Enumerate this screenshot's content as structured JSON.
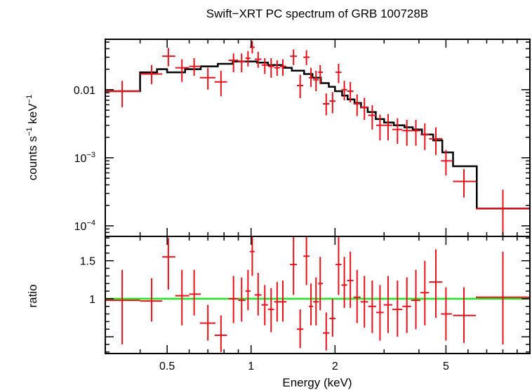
{
  "chart_data": [
    {
      "type": "scatter",
      "title": "Swift−XRT PC spectrum of GRB 100728B",
      "ylabel_main": "counts s",
      "ylabel_exp1": "−1",
      "ylabel_unit": " keV",
      "ylabel_exp2": "−1",
      "xscale": "log",
      "yscale": "log",
      "xlim": [
        0.3,
        10
      ],
      "ylim": [
        7e-05,
        0.055
      ],
      "yticks": [
        {
          "mant": "0.01",
          "exp": ""
        },
        {
          "mant": "10",
          "exp": "−3"
        },
        {
          "mant": "10",
          "exp": "−4"
        }
      ],
      "ytick_values": [
        0.01,
        0.001,
        0.0001
      ],
      "series": [
        {
          "kind": "data",
          "color": "#e8111a",
          "points": [
            {
              "x": 0.345,
              "xlo": 0.3,
              "xhi": 0.4,
              "y": 0.0095,
              "ylo": 0.0055,
              "yhi": 0.0135
            },
            {
              "x": 0.44,
              "xlo": 0.4,
              "xhi": 0.48,
              "y": 0.017,
              "ylo": 0.012,
              "yhi": 0.023
            },
            {
              "x": 0.505,
              "xlo": 0.48,
              "xhi": 0.535,
              "y": 0.031,
              "ylo": 0.022,
              "yhi": 0.041
            },
            {
              "x": 0.565,
              "xlo": 0.535,
              "xhi": 0.6,
              "y": 0.021,
              "ylo": 0.013,
              "yhi": 0.028
            },
            {
              "x": 0.625,
              "xlo": 0.6,
              "xhi": 0.66,
              "y": 0.022,
              "ylo": 0.016,
              "yhi": 0.029
            },
            {
              "x": 0.7,
              "xlo": 0.655,
              "xhi": 0.745,
              "y": 0.015,
              "ylo": 0.01,
              "yhi": 0.021
            },
            {
              "x": 0.78,
              "xlo": 0.74,
              "xhi": 0.82,
              "y": 0.013,
              "ylo": 0.008,
              "yhi": 0.019
            },
            {
              "x": 0.865,
              "xlo": 0.83,
              "xhi": 0.9,
              "y": 0.027,
              "ylo": 0.018,
              "yhi": 0.034
            },
            {
              "x": 0.925,
              "xlo": 0.9,
              "xhi": 0.955,
              "y": 0.026,
              "ylo": 0.018,
              "yhi": 0.034
            },
            {
              "x": 0.975,
              "xlo": 0.955,
              "xhi": 0.995,
              "y": 0.029,
              "ylo": 0.022,
              "yhi": 0.037
            },
            {
              "x": 1.01,
              "xlo": 0.99,
              "xhi": 1.03,
              "y": 0.042,
              "ylo": 0.034,
              "yhi": 0.052
            },
            {
              "x": 1.06,
              "xlo": 1.03,
              "xhi": 1.09,
              "y": 0.028,
              "ylo": 0.021,
              "yhi": 0.036
            },
            {
              "x": 1.12,
              "xlo": 1.09,
              "xhi": 1.15,
              "y": 0.023,
              "ylo": 0.017,
              "yhi": 0.029
            },
            {
              "x": 1.18,
              "xlo": 1.15,
              "xhi": 1.21,
              "y": 0.022,
              "ylo": 0.015,
              "yhi": 0.029
            },
            {
              "x": 1.24,
              "xlo": 1.21,
              "xhi": 1.27,
              "y": 0.021,
              "ylo": 0.016,
              "yhi": 0.027
            },
            {
              "x": 1.3,
              "xlo": 1.27,
              "xhi": 1.34,
              "y": 0.022,
              "ylo": 0.016,
              "yhi": 0.028
            },
            {
              "x": 1.42,
              "xlo": 1.38,
              "xhi": 1.46,
              "y": 0.031,
              "ylo": 0.023,
              "yhi": 0.039
            },
            {
              "x": 1.5,
              "xlo": 1.46,
              "xhi": 1.54,
              "y": 0.0115,
              "ylo": 0.0075,
              "yhi": 0.0165
            },
            {
              "x": 1.58,
              "xlo": 1.54,
              "xhi": 1.62,
              "y": 0.03,
              "ylo": 0.023,
              "yhi": 0.038
            },
            {
              "x": 1.64,
              "xlo": 1.61,
              "xhi": 1.67,
              "y": 0.015,
              "ylo": 0.011,
              "yhi": 0.021
            },
            {
              "x": 1.71,
              "xlo": 1.67,
              "xhi": 1.75,
              "y": 0.014,
              "ylo": 0.0095,
              "yhi": 0.019
            },
            {
              "x": 1.77,
              "xlo": 1.74,
              "xhi": 1.81,
              "y": 0.018,
              "ylo": 0.012,
              "yhi": 0.023
            },
            {
              "x": 1.86,
              "xlo": 1.81,
              "xhi": 1.91,
              "y": 0.0062,
              "ylo": 0.0042,
              "yhi": 0.0088
            },
            {
              "x": 1.96,
              "xlo": 1.91,
              "xhi": 2.01,
              "y": 0.0068,
              "ylo": 0.0045,
              "yhi": 0.0092
            },
            {
              "x": 2.06,
              "xlo": 2.01,
              "xhi": 2.11,
              "y": 0.018,
              "ylo": 0.0125,
              "yhi": 0.024
            },
            {
              "x": 2.16,
              "xlo": 2.11,
              "xhi": 2.21,
              "y": 0.01,
              "ylo": 0.007,
              "yhi": 0.0135
            },
            {
              "x": 2.27,
              "xlo": 2.21,
              "xhi": 2.33,
              "y": 0.0095,
              "ylo": 0.0065,
              "yhi": 0.013
            },
            {
              "x": 2.4,
              "xlo": 2.33,
              "xhi": 2.47,
              "y": 0.0062,
              "ylo": 0.0041,
              "yhi": 0.0085
            },
            {
              "x": 2.55,
              "xlo": 2.47,
              "xhi": 2.63,
              "y": 0.0055,
              "ylo": 0.0036,
              "yhi": 0.0076
            },
            {
              "x": 2.72,
              "xlo": 2.63,
              "xhi": 2.81,
              "y": 0.0042,
              "ylo": 0.0026,
              "yhi": 0.0059
            },
            {
              "x": 2.9,
              "xlo": 2.81,
              "xhi": 2.99,
              "y": 0.003,
              "ylo": 0.0018,
              "yhi": 0.0043
            },
            {
              "x": 3.1,
              "xlo": 2.99,
              "xhi": 3.21,
              "y": 0.003,
              "ylo": 0.0018,
              "yhi": 0.0044
            },
            {
              "x": 3.35,
              "xlo": 3.21,
              "xhi": 3.49,
              "y": 0.0026,
              "ylo": 0.0016,
              "yhi": 0.0038
            },
            {
              "x": 3.62,
              "xlo": 3.49,
              "xhi": 3.75,
              "y": 0.0025,
              "ylo": 0.0015,
              "yhi": 0.0036
            },
            {
              "x": 3.9,
              "xlo": 3.75,
              "xhi": 4.05,
              "y": 0.0025,
              "ylo": 0.0015,
              "yhi": 0.0036
            },
            {
              "x": 4.2,
              "xlo": 4.05,
              "xhi": 4.35,
              "y": 0.0022,
              "ylo": 0.0013,
              "yhi": 0.0032
            },
            {
              "x": 4.6,
              "xlo": 4.35,
              "xhi": 4.85,
              "y": 0.0019,
              "ylo": 0.0011,
              "yhi": 0.0028
            },
            {
              "x": 5.0,
              "xlo": 4.8,
              "xhi": 5.25,
              "y": 0.0009,
              "ylo": 0.00055,
              "yhi": 0.0013
            },
            {
              "x": 5.8,
              "xlo": 5.3,
              "xhi": 6.4,
              "y": 0.00045,
              "ylo": 0.00026,
              "yhi": 0.00068
            },
            {
              "x": 8.0,
              "xlo": 6.4,
              "xhi": 10.0,
              "y": 0.00018,
              "ylo": 7e-05,
              "yhi": 0.00034
            }
          ]
        },
        {
          "kind": "model-step",
          "color": "#000000",
          "steps": [
            [
              0.3,
              0.4,
              0.0095
            ],
            [
              0.4,
              0.46,
              0.018
            ],
            [
              0.46,
              0.5,
              0.02
            ],
            [
              0.5,
              0.58,
              0.018
            ],
            [
              0.58,
              0.66,
              0.02
            ],
            [
              0.66,
              0.76,
              0.022
            ],
            [
              0.76,
              0.86,
              0.024
            ],
            [
              0.86,
              1.05,
              0.026
            ],
            [
              1.05,
              1.15,
              0.025
            ],
            [
              1.15,
              1.3,
              0.023
            ],
            [
              1.3,
              1.4,
              0.021
            ],
            [
              1.4,
              1.55,
              0.019
            ],
            [
              1.55,
              1.66,
              0.017
            ],
            [
              1.66,
              1.78,
              0.015
            ],
            [
              1.78,
              1.9,
              0.0125
            ],
            [
              1.9,
              2.0,
              0.011
            ],
            [
              2.0,
              2.12,
              0.0095
            ],
            [
              2.12,
              2.22,
              0.0082
            ],
            [
              2.22,
              2.35,
              0.0072
            ],
            [
              2.35,
              2.48,
              0.0064
            ],
            [
              2.48,
              2.62,
              0.0055
            ],
            [
              2.62,
              2.8,
              0.0047
            ],
            [
              2.8,
              3.0,
              0.0037
            ],
            [
              3.0,
              3.25,
              0.0033
            ],
            [
              3.25,
              3.55,
              0.003
            ],
            [
              3.55,
              3.8,
              0.0028
            ],
            [
              3.8,
              4.1,
              0.0026
            ],
            [
              4.1,
              4.5,
              0.0022
            ],
            [
              4.5,
              4.85,
              0.0018
            ],
            [
              4.85,
              5.3,
              0.0012
            ],
            [
              5.3,
              6.45,
              0.00075
            ],
            [
              6.45,
              10.0,
              0.00018
            ]
          ]
        }
      ]
    },
    {
      "type": "scatter",
      "ylabel": "ratio",
      "xlabel": "Energy (keV)",
      "xscale": "log",
      "xlim": [
        0.3,
        10
      ],
      "ylim": [
        0.28,
        1.82
      ],
      "yticks": [
        "1.5",
        "1"
      ],
      "ytick_values": [
        1.5,
        1.0
      ],
      "xticks": [
        "0.5",
        "1",
        "2",
        "5"
      ],
      "xtick_values": [
        0.5,
        1,
        2,
        5
      ],
      "reference_line": {
        "y": 1.0,
        "color": "#1ee61e"
      },
      "series": [
        {
          "kind": "data",
          "color": "#e8111a",
          "points": [
            {
              "x": 0.345,
              "xlo": 0.3,
              "xhi": 0.4,
              "y": 0.98,
              "ylo": 0.4,
              "yhi": 1.38
            },
            {
              "x": 0.44,
              "xlo": 0.4,
              "xhi": 0.48,
              "y": 0.97,
              "ylo": 0.7,
              "yhi": 1.27
            },
            {
              "x": 0.505,
              "xlo": 0.48,
              "xhi": 0.535,
              "y": 1.55,
              "ylo": 1.12,
              "yhi": 1.8
            },
            {
              "x": 0.565,
              "xlo": 0.535,
              "xhi": 0.6,
              "y": 1.04,
              "ylo": 0.65,
              "yhi": 1.38
            },
            {
              "x": 0.625,
              "xlo": 0.6,
              "xhi": 0.66,
              "y": 1.06,
              "ylo": 0.78,
              "yhi": 1.38
            },
            {
              "x": 0.7,
              "xlo": 0.655,
              "xhi": 0.745,
              "y": 0.68,
              "ylo": 0.45,
              "yhi": 0.92
            },
            {
              "x": 0.78,
              "xlo": 0.74,
              "xhi": 0.82,
              "y": 0.52,
              "ylo": 0.3,
              "yhi": 0.78
            },
            {
              "x": 0.865,
              "xlo": 0.83,
              "xhi": 0.9,
              "y": 1.0,
              "ylo": 0.68,
              "yhi": 1.3
            },
            {
              "x": 0.925,
              "xlo": 0.9,
              "xhi": 0.955,
              "y": 0.98,
              "ylo": 0.7,
              "yhi": 1.28
            },
            {
              "x": 0.975,
              "xlo": 0.955,
              "xhi": 0.995,
              "y": 1.1,
              "ylo": 0.85,
              "yhi": 1.38
            },
            {
              "x": 1.01,
              "xlo": 0.99,
              "xhi": 1.03,
              "y": 1.62,
              "ylo": 1.3,
              "yhi": 1.98
            },
            {
              "x": 1.06,
              "xlo": 1.03,
              "xhi": 1.09,
              "y": 1.05,
              "ylo": 0.78,
              "yhi": 1.34
            },
            {
              "x": 1.12,
              "xlo": 1.09,
              "xhi": 1.15,
              "y": 0.92,
              "ylo": 0.65,
              "yhi": 1.18
            },
            {
              "x": 1.18,
              "xlo": 1.15,
              "xhi": 1.21,
              "y": 0.86,
              "ylo": 0.56,
              "yhi": 1.14
            },
            {
              "x": 1.24,
              "xlo": 1.21,
              "xhi": 1.27,
              "y": 0.96,
              "ylo": 0.7,
              "yhi": 1.22
            },
            {
              "x": 1.3,
              "xlo": 1.27,
              "xhi": 1.34,
              "y": 0.96,
              "ylo": 0.7,
              "yhi": 1.24
            },
            {
              "x": 1.42,
              "xlo": 1.38,
              "xhi": 1.46,
              "y": 1.45,
              "ylo": 1.05,
              "yhi": 1.82
            },
            {
              "x": 1.5,
              "xlo": 1.46,
              "xhi": 1.54,
              "y": 0.6,
              "ylo": 0.35,
              "yhi": 0.86
            },
            {
              "x": 1.58,
              "xlo": 1.54,
              "xhi": 1.62,
              "y": 1.56,
              "ylo": 1.18,
              "yhi": 1.92
            },
            {
              "x": 1.64,
              "xlo": 1.61,
              "xhi": 1.67,
              "y": 0.9,
              "ylo": 0.65,
              "yhi": 1.2
            },
            {
              "x": 1.71,
              "xlo": 1.67,
              "xhi": 1.75,
              "y": 0.96,
              "ylo": 0.65,
              "yhi": 1.28
            },
            {
              "x": 1.77,
              "xlo": 1.74,
              "xhi": 1.81,
              "y": 1.2,
              "ylo": 0.85,
              "yhi": 1.55
            },
            {
              "x": 1.86,
              "xlo": 1.81,
              "xhi": 1.91,
              "y": 0.55,
              "ylo": 0.32,
              "yhi": 0.82
            },
            {
              "x": 1.96,
              "xlo": 1.91,
              "xhi": 2.01,
              "y": 0.74,
              "ylo": 0.5,
              "yhi": 1.0
            },
            {
              "x": 2.06,
              "xlo": 2.01,
              "xhi": 2.11,
              "y": 1.45,
              "ylo": 1.05,
              "yhi": 1.84
            },
            {
              "x": 2.16,
              "xlo": 2.11,
              "xhi": 2.21,
              "y": 1.18,
              "ylo": 0.88,
              "yhi": 1.55
            },
            {
              "x": 2.27,
              "xlo": 2.21,
              "xhi": 2.33,
              "y": 1.24,
              "ylo": 0.88,
              "yhi": 1.62
            },
            {
              "x": 2.4,
              "xlo": 2.33,
              "xhi": 2.47,
              "y": 1.02,
              "ylo": 0.68,
              "yhi": 1.38
            },
            {
              "x": 2.55,
              "xlo": 2.47,
              "xhi": 2.63,
              "y": 0.96,
              "ylo": 0.62,
              "yhi": 1.3
            },
            {
              "x": 2.72,
              "xlo": 2.63,
              "xhi": 2.81,
              "y": 0.9,
              "ylo": 0.55,
              "yhi": 1.24
            },
            {
              "x": 2.9,
              "xlo": 2.81,
              "xhi": 2.99,
              "y": 0.82,
              "ylo": 0.45,
              "yhi": 1.18
            },
            {
              "x": 3.1,
              "xlo": 2.99,
              "xhi": 3.21,
              "y": 0.92,
              "ylo": 0.55,
              "yhi": 1.3
            },
            {
              "x": 3.35,
              "xlo": 3.21,
              "xhi": 3.49,
              "y": 0.86,
              "ylo": 0.5,
              "yhi": 1.24
            },
            {
              "x": 3.62,
              "xlo": 3.49,
              "xhi": 3.75,
              "y": 0.9,
              "ylo": 0.55,
              "yhi": 1.28
            },
            {
              "x": 3.9,
              "xlo": 3.75,
              "xhi": 4.05,
              "y": 0.98,
              "ylo": 0.6,
              "yhi": 1.38
            },
            {
              "x": 4.2,
              "xlo": 4.05,
              "xhi": 4.35,
              "y": 1.08,
              "ylo": 0.65,
              "yhi": 1.5
            },
            {
              "x": 4.6,
              "xlo": 4.35,
              "xhi": 4.85,
              "y": 1.22,
              "ylo": 0.75,
              "yhi": 1.65
            },
            {
              "x": 5.0,
              "xlo": 4.8,
              "xhi": 5.25,
              "y": 0.8,
              "ylo": 0.45,
              "yhi": 1.15
            },
            {
              "x": 5.8,
              "xlo": 5.3,
              "xhi": 6.4,
              "y": 0.78,
              "ylo": 0.42,
              "yhi": 1.15
            },
            {
              "x": 8.0,
              "xlo": 6.4,
              "xhi": 10.0,
              "y": 1.02,
              "ylo": 0.4,
              "yhi": 1.62
            }
          ]
        }
      ]
    }
  ]
}
